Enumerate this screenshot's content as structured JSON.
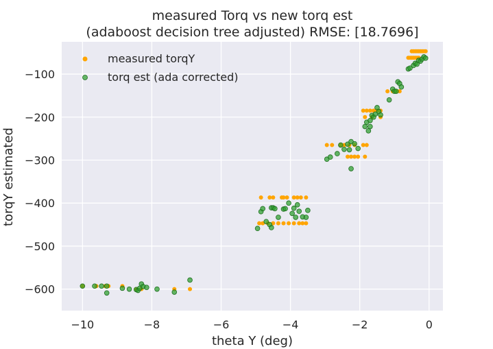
{
  "chart_data": {
    "type": "scatter",
    "title_line1": "measured Torq vs new torq est",
    "title_line2": "(adaboost decision tree adjusted) RMSE: [18.7696]",
    "xlabel": "theta Y (deg)",
    "ylabel": "torqY estimated",
    "xlim": [
      -10.6,
      0.4
    ],
    "ylim": [
      -650,
      -25
    ],
    "xticks": [
      -10,
      -8,
      -6,
      -4,
      -2,
      0
    ],
    "xtick_labels": [
      "−10",
      "−8",
      "−6",
      "−4",
      "−2",
      "0"
    ],
    "yticks": [
      -600,
      -500,
      -400,
      -300,
      -200,
      -100
    ],
    "ytick_labels": [
      "−600",
      "−500",
      "−400",
      "−300",
      "−200",
      "−100"
    ],
    "grid": true,
    "legend_position": "upper-left",
    "series": [
      {
        "name": "measured torqY",
        "color": "#ffa500",
        "points": [
          [
            -10.0,
            -593
          ],
          [
            -9.6,
            -593
          ],
          [
            -9.35,
            -593
          ],
          [
            -9.25,
            -593
          ],
          [
            -8.85,
            -593
          ],
          [
            -8.45,
            -600
          ],
          [
            -8.3,
            -600
          ],
          [
            -7.35,
            -600
          ],
          [
            -6.9,
            -600
          ],
          [
            -4.9,
            -447
          ],
          [
            -4.8,
            -447
          ],
          [
            -4.65,
            -447
          ],
          [
            -4.5,
            -447
          ],
          [
            -4.35,
            -447
          ],
          [
            -4.2,
            -447
          ],
          [
            -4.05,
            -447
          ],
          [
            -3.9,
            -447
          ],
          [
            -3.75,
            -447
          ],
          [
            -3.65,
            -447
          ],
          [
            -3.55,
            -447
          ],
          [
            -4.85,
            -387
          ],
          [
            -4.6,
            -387
          ],
          [
            -4.5,
            -387
          ],
          [
            -4.25,
            -387
          ],
          [
            -4.2,
            -387
          ],
          [
            -4.1,
            -387
          ],
          [
            -3.9,
            -387
          ],
          [
            -3.8,
            -387
          ],
          [
            -3.7,
            -387
          ],
          [
            -3.55,
            -387
          ],
          [
            -2.95,
            -265
          ],
          [
            -2.8,
            -265
          ],
          [
            -2.55,
            -265
          ],
          [
            -2.45,
            -265
          ],
          [
            -2.3,
            -265
          ],
          [
            -2.15,
            -265
          ],
          [
            -1.9,
            -265
          ],
          [
            -1.8,
            -265
          ],
          [
            -2.35,
            -292
          ],
          [
            -2.25,
            -292
          ],
          [
            -2.15,
            -292
          ],
          [
            -2.05,
            -292
          ],
          [
            -1.85,
            -292
          ],
          [
            -1.9,
            -185
          ],
          [
            -1.8,
            -185
          ],
          [
            -1.7,
            -185
          ],
          [
            -1.6,
            -185
          ],
          [
            -1.5,
            -185
          ],
          [
            -1.4,
            -185
          ],
          [
            -1.85,
            -200
          ],
          [
            -1.65,
            -200
          ],
          [
            -1.4,
            -200
          ],
          [
            -1.2,
            -140
          ],
          [
            -1.05,
            -140
          ],
          [
            -0.95,
            -140
          ],
          [
            -0.85,
            -140
          ],
          [
            -0.6,
            -62
          ],
          [
            -0.55,
            -62
          ],
          [
            -0.5,
            -62
          ],
          [
            -0.45,
            -62
          ],
          [
            -0.4,
            -62
          ],
          [
            -0.35,
            -62
          ],
          [
            -0.3,
            -62
          ],
          [
            -0.5,
            -47
          ],
          [
            -0.45,
            -47
          ],
          [
            -0.4,
            -47
          ],
          [
            -0.35,
            -47
          ],
          [
            -0.3,
            -47
          ],
          [
            -0.25,
            -47
          ],
          [
            -0.2,
            -47
          ],
          [
            -0.15,
            -47
          ],
          [
            -0.1,
            -47
          ]
        ]
      },
      {
        "name": "torq est (ada corrected)",
        "color": "#2ca02c",
        "points": [
          [
            -10.0,
            -593
          ],
          [
            -9.65,
            -593
          ],
          [
            -9.45,
            -593
          ],
          [
            -9.3,
            -593
          ],
          [
            -9.3,
            -609
          ],
          [
            -8.85,
            -598
          ],
          [
            -8.65,
            -600
          ],
          [
            -8.45,
            -601
          ],
          [
            -8.4,
            -603
          ],
          [
            -8.35,
            -598
          ],
          [
            -8.3,
            -588
          ],
          [
            -8.25,
            -594
          ],
          [
            -8.15,
            -596
          ],
          [
            -7.85,
            -600
          ],
          [
            -7.35,
            -607
          ],
          [
            -6.9,
            -579
          ],
          [
            -4.95,
            -459
          ],
          [
            -4.85,
            -420
          ],
          [
            -4.8,
            -413
          ],
          [
            -4.7,
            -443
          ],
          [
            -4.6,
            -450
          ],
          [
            -4.55,
            -411
          ],
          [
            -4.55,
            -457
          ],
          [
            -4.5,
            -411
          ],
          [
            -4.45,
            -413
          ],
          [
            -4.35,
            -433
          ],
          [
            -4.2,
            -414
          ],
          [
            -4.15,
            -413
          ],
          [
            -4.05,
            -400
          ],
          [
            -3.95,
            -424
          ],
          [
            -3.9,
            -412
          ],
          [
            -3.85,
            -433
          ],
          [
            -3.8,
            -404
          ],
          [
            -3.75,
            -419
          ],
          [
            -3.65,
            -432
          ],
          [
            -3.55,
            -433
          ],
          [
            -3.5,
            -417
          ],
          [
            -2.95,
            -298
          ],
          [
            -2.85,
            -293
          ],
          [
            -2.65,
            -285
          ],
          [
            -2.55,
            -265
          ],
          [
            -2.45,
            -275
          ],
          [
            -2.35,
            -263
          ],
          [
            -2.3,
            -276
          ],
          [
            -2.25,
            -257
          ],
          [
            -2.25,
            -320
          ],
          [
            -2.15,
            -262
          ],
          [
            -2.05,
            -273
          ],
          [
            -1.85,
            -222
          ],
          [
            -1.8,
            -212
          ],
          [
            -1.75,
            -232
          ],
          [
            -1.7,
            -208
          ],
          [
            -1.7,
            -222
          ],
          [
            -1.65,
            -196
          ],
          [
            -1.6,
            -200
          ],
          [
            -1.55,
            -193
          ],
          [
            -1.5,
            -178
          ],
          [
            -1.45,
            -187
          ],
          [
            -1.4,
            -195
          ],
          [
            -1.15,
            -160
          ],
          [
            -1.05,
            -135
          ],
          [
            -1.0,
            -140
          ],
          [
            -0.95,
            -140
          ],
          [
            -0.9,
            -118
          ],
          [
            -0.85,
            -122
          ],
          [
            -0.8,
            -130
          ],
          [
            -0.6,
            -88
          ],
          [
            -0.55,
            -86
          ],
          [
            -0.45,
            -80
          ],
          [
            -0.4,
            -75
          ],
          [
            -0.35,
            -77
          ],
          [
            -0.3,
            -68
          ],
          [
            -0.25,
            -70
          ],
          [
            -0.2,
            -65
          ],
          [
            -0.15,
            -60
          ],
          [
            -0.1,
            -63
          ]
        ]
      }
    ]
  }
}
